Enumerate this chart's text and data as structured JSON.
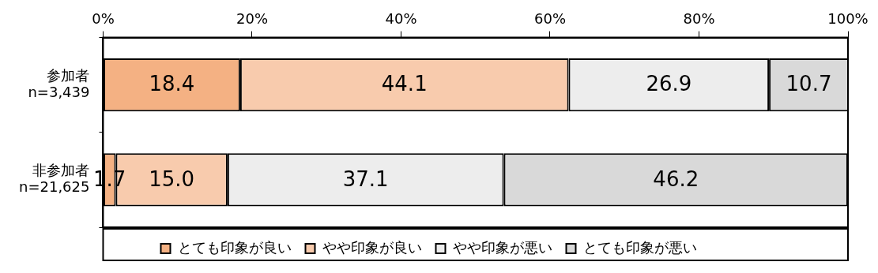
{
  "chart_data": {
    "type": "bar",
    "orientation": "horizontal",
    "stacked": true,
    "categories": [
      "参加者\nn=3,439",
      "非参加者\nn=21,625"
    ],
    "series": [
      {
        "name": "とても印象が良い",
        "color": "#f4b183",
        "values": [
          18.4,
          1.7
        ],
        "value_labels": [
          "18.4",
          "1.7"
        ]
      },
      {
        "name": "やや印象が良い",
        "color": "#f8cbad",
        "values": [
          44.1,
          15.0
        ],
        "value_labels": [
          "44.1",
          "15.0"
        ]
      },
      {
        "name": "やや印象が悪い",
        "color": "#ededed",
        "values": [
          26.9,
          37.1
        ],
        "value_labels": [
          "26.9",
          "37.1"
        ]
      },
      {
        "name": "とても印象が悪い",
        "color": "#d9d9d9",
        "values": [
          10.7,
          46.2
        ],
        "value_labels": [
          "10.7",
          "46.2"
        ]
      }
    ],
    "xlim": [
      0,
      100
    ],
    "xticks": [
      {
        "value": 0,
        "label": "0%"
      },
      {
        "value": 20,
        "label": "20%"
      },
      {
        "value": 40,
        "label": "40%"
      },
      {
        "value": 60,
        "label": "60%"
      },
      {
        "value": 80,
        "label": "80%"
      },
      {
        "value": 100,
        "label": "100%"
      }
    ],
    "grid": false,
    "legend": "bottom"
  }
}
